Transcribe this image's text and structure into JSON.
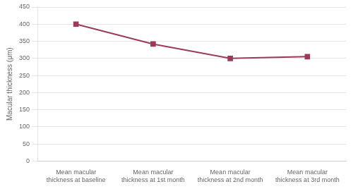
{
  "chart_data": {
    "type": "line",
    "categories": [
      "Mean macular\nthickness at baseline",
      "Mean macular\nthickness at 1st month",
      "Mean macular\nthickness at 2nd month",
      "Mean macular\nthickness at 3rd month"
    ],
    "values": [
      400,
      342,
      300,
      305
    ],
    "color": "#9b3a5a",
    "marker": "square",
    "ylabel": "Macular thickness (μm)",
    "ylim": [
      0,
      450
    ],
    "yticks": [
      0,
      50,
      100,
      150,
      200,
      250,
      300,
      350,
      400,
      450
    ],
    "grid": "y"
  }
}
